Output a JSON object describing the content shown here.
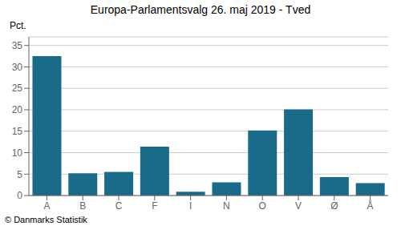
{
  "chart_data": {
    "type": "bar",
    "title": "Europa-Parlamentsvalg 26. maj 2019 - Tved",
    "ylabel": "Pct.",
    "footer": "© Danmarks Statistik",
    "categories": [
      "A",
      "B",
      "C",
      "F",
      "I",
      "N",
      "O",
      "V",
      "Ø",
      "Å"
    ],
    "values": [
      32.5,
      5.2,
      5.5,
      11.4,
      0.9,
      3.1,
      15.2,
      20.1,
      4.3,
      2.9
    ],
    "color": "#1a6b8a",
    "ylim": [
      0,
      37
    ],
    "yticks": [
      0,
      5,
      10,
      15,
      20,
      25,
      30,
      35
    ],
    "grid": true
  }
}
